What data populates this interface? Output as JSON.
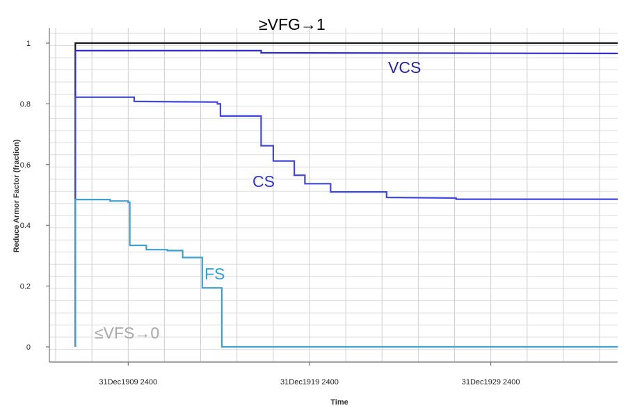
{
  "chart_data": {
    "type": "line",
    "title": "",
    "xlabel": "Time",
    "ylabel": "Reduce Armor Factor (fraction)",
    "ylim": [
      0,
      1
    ],
    "y_ticks": [
      0,
      0.2,
      0.4,
      0.6,
      0.8,
      1
    ],
    "y_tick_labels": [
      "0",
      "0.2",
      "0.4",
      "0.6",
      "0.8",
      "1"
    ],
    "xlim": [
      "1905-12-31",
      "1935-12-31"
    ],
    "x_ticks": [
      "1909-12-31",
      "1919-12-31",
      "1929-12-31"
    ],
    "x_tick_labels": [
      "31Dec1909 2400",
      "31Dec1919 2400",
      "31Dec1929 2400"
    ],
    "grid": true,
    "legend": "none",
    "series": [
      {
        "key": "vfg",
        "color": "#1a1a1a",
        "points": [
          [
            "1907-02-01",
            0
          ],
          [
            "1907-02-01",
            1.0
          ],
          [
            "1937-01-01",
            1.0
          ]
        ]
      },
      {
        "key": "vcs",
        "color": "#2e2ec4",
        "points": [
          [
            "1907-02-01",
            0
          ],
          [
            "1907-02-01",
            0.975
          ],
          [
            "1917-05-01",
            0.975
          ],
          [
            "1917-05-01",
            0.968
          ],
          [
            "1937-01-01",
            0.966
          ]
        ]
      },
      {
        "key": "cs",
        "color": "#3f47de",
        "points": [
          [
            "1907-02-01",
            0
          ],
          [
            "1907-02-01",
            0.822
          ],
          [
            "1910-05-01",
            0.822
          ],
          [
            "1910-05-01",
            0.808
          ],
          [
            "1914-12-01",
            0.806
          ],
          [
            "1914-12-01",
            0.8
          ],
          [
            "1915-02-01",
            0.8
          ],
          [
            "1915-02-01",
            0.76
          ],
          [
            "1917-05-01",
            0.76
          ],
          [
            "1917-05-01",
            0.662
          ],
          [
            "1918-01-01",
            0.662
          ],
          [
            "1918-01-01",
            0.612
          ],
          [
            "1919-03-01",
            0.612
          ],
          [
            "1919-03-01",
            0.565
          ],
          [
            "1919-10-01",
            0.565
          ],
          [
            "1919-10-01",
            0.537
          ],
          [
            "1921-03-01",
            0.537
          ],
          [
            "1921-03-01",
            0.51
          ],
          [
            "1924-04-01",
            0.51
          ],
          [
            "1924-04-01",
            0.492
          ],
          [
            "1928-02-01",
            0.49
          ],
          [
            "1928-02-01",
            0.486
          ],
          [
            "1937-01-01",
            0.486
          ]
        ]
      },
      {
        "key": "fs",
        "color": "#3fa0cf",
        "points": [
          [
            "1907-02-01",
            0
          ],
          [
            "1907-02-01",
            0.485
          ],
          [
            "1909-01-01",
            0.485
          ],
          [
            "1909-01-01",
            0.48
          ],
          [
            "1910-01-01",
            0.48
          ],
          [
            "1910-01-01",
            0.476
          ],
          [
            "1910-02-01",
            0.476
          ],
          [
            "1910-02-01",
            0.334
          ],
          [
            "1911-01-01",
            0.334
          ],
          [
            "1911-01-01",
            0.32
          ],
          [
            "1912-03-01",
            0.32
          ],
          [
            "1912-03-01",
            0.317
          ],
          [
            "1913-01-01",
            0.317
          ],
          [
            "1913-01-01",
            0.294
          ],
          [
            "1914-02-01",
            0.294
          ],
          [
            "1914-02-01",
            0.194
          ],
          [
            "1915-03-01",
            0.194
          ],
          [
            "1915-03-01",
            0.0
          ],
          [
            "1937-01-01",
            0.0
          ]
        ]
      }
    ],
    "annotations": [
      {
        "text": "≥VFG→1",
        "color": "#000000"
      },
      {
        "text": "VCS",
        "color": "#2424a8"
      },
      {
        "text": "CS",
        "color": "#2c33cf"
      },
      {
        "text": "FS",
        "color": "#2c9fd8"
      },
      {
        "text": "≤VFS→0",
        "color": "#a8a8a8"
      }
    ]
  }
}
